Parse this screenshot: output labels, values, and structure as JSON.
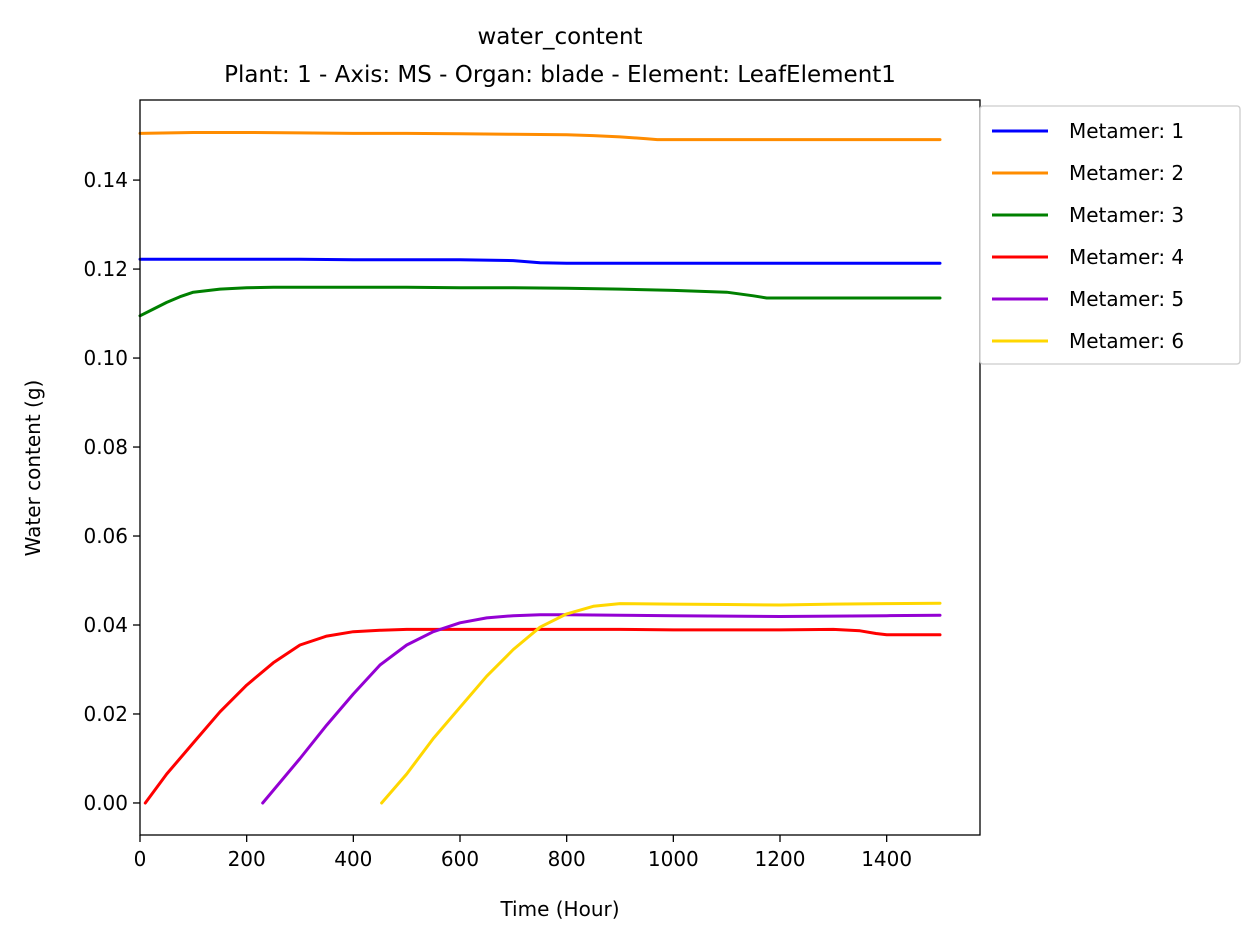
{
  "chart_data": {
    "type": "line",
    "title": "water_content",
    "subtitle": "Plant: 1 - Axis: MS - Organ: blade - Element: LeafElement1",
    "xlabel": "Time (Hour)",
    "ylabel": "Water content (g)",
    "xlim": [
      0,
      1575
    ],
    "ylim": [
      -0.0072,
      0.158
    ],
    "xticks": [
      0,
      200,
      400,
      600,
      800,
      1000,
      1200,
      1400
    ],
    "yticks": [
      0.0,
      0.02,
      0.04,
      0.06,
      0.08,
      0.1,
      0.12,
      0.14
    ],
    "xtick_labels": [
      "0",
      "200",
      "400",
      "600",
      "800",
      "1000",
      "1200",
      "1400"
    ],
    "ytick_labels": [
      "0.00",
      "0.02",
      "0.04",
      "0.06",
      "0.08",
      "0.10",
      "0.12",
      "0.14"
    ],
    "grid": false,
    "legend_position": "upper-right-outside",
    "series": [
      {
        "name": "Metamer: 1",
        "color": "#0000ff",
        "x": [
          0,
          100,
          200,
          300,
          400,
          500,
          600,
          700,
          750,
          800,
          1000,
          1200,
          1400,
          1500
        ],
        "y": [
          0.1222,
          0.1222,
          0.1222,
          0.1222,
          0.1221,
          0.1221,
          0.1221,
          0.1219,
          0.1214,
          0.1213,
          0.1213,
          0.1213,
          0.1213,
          0.1213
        ]
      },
      {
        "name": "Metamer: 2",
        "color": "#ff8c00",
        "x": [
          0,
          100,
          200,
          300,
          400,
          500,
          600,
          700,
          800,
          850,
          900,
          950,
          970,
          1000,
          1200,
          1400,
          1500
        ],
        "y": [
          0.1505,
          0.1507,
          0.1507,
          0.1506,
          0.1505,
          0.1505,
          0.1504,
          0.1503,
          0.1502,
          0.15,
          0.1497,
          0.1493,
          0.1491,
          0.1491,
          0.1491,
          0.1491,
          0.1491
        ]
      },
      {
        "name": "Metamer: 3",
        "color": "#008000",
        "x": [
          0,
          25,
          50,
          75,
          100,
          150,
          200,
          250,
          300,
          400,
          500,
          600,
          700,
          800,
          900,
          1000,
          1100,
          1150,
          1175,
          1200,
          1400,
          1500
        ],
        "y": [
          0.1095,
          0.111,
          0.1125,
          0.1138,
          0.1148,
          0.1155,
          0.1158,
          0.1159,
          0.1159,
          0.1159,
          0.1159,
          0.1158,
          0.1158,
          0.1157,
          0.1155,
          0.1152,
          0.1148,
          0.114,
          0.1135,
          0.1135,
          0.1135,
          0.1135
        ]
      },
      {
        "name": "Metamer: 4",
        "color": "#ff0000",
        "x": [
          10,
          50,
          100,
          150,
          200,
          250,
          300,
          350,
          400,
          450,
          500,
          600,
          700,
          800,
          900,
          1000,
          1100,
          1200,
          1300,
          1350,
          1380,
          1400,
          1500
        ],
        "y": [
          0.0,
          0.0065,
          0.0135,
          0.0205,
          0.0265,
          0.0315,
          0.0355,
          0.0375,
          0.0385,
          0.0388,
          0.039,
          0.039,
          0.039,
          0.039,
          0.039,
          0.0389,
          0.0389,
          0.0389,
          0.039,
          0.0387,
          0.0381,
          0.0378,
          0.0378
        ]
      },
      {
        "name": "Metamer: 5",
        "color": "#9400d3",
        "x": [
          230,
          300,
          350,
          400,
          450,
          500,
          550,
          600,
          650,
          700,
          750,
          800,
          900,
          1000,
          1100,
          1200,
          1300,
          1400,
          1500
        ],
        "y": [
          0.0,
          0.01,
          0.0175,
          0.0245,
          0.031,
          0.0355,
          0.0385,
          0.0405,
          0.0416,
          0.0421,
          0.0423,
          0.0423,
          0.0422,
          0.0421,
          0.042,
          0.0419,
          0.042,
          0.0421,
          0.0422
        ]
      },
      {
        "name": "Metamer: 6",
        "color": "#ffd700",
        "x": [
          453,
          500,
          550,
          600,
          650,
          700,
          750,
          800,
          850,
          900,
          1000,
          1100,
          1200,
          1300,
          1400,
          1500
        ],
        "y": [
          0.0,
          0.0065,
          0.0145,
          0.0215,
          0.0285,
          0.0345,
          0.0395,
          0.0425,
          0.0442,
          0.0448,
          0.0447,
          0.0446,
          0.0445,
          0.0447,
          0.0448,
          0.0449
        ]
      }
    ]
  }
}
